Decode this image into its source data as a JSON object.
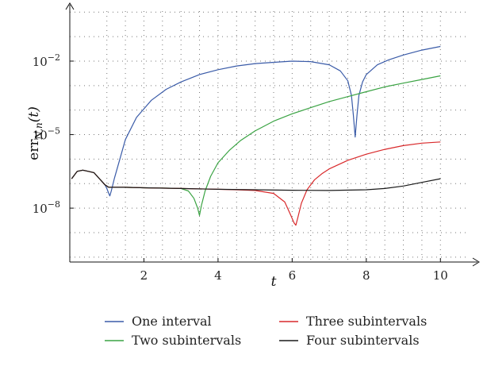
{
  "chart_data": {
    "type": "line",
    "xlabel": "t",
    "ylabel": "err",
    "ylabel_sub": "N,n",
    "ylabel_arg": "(t)",
    "xlim": [
      0,
      11
    ],
    "ylim_log10": [
      -10.2,
      0.3
    ],
    "y_scale": "log",
    "grid": "dotted",
    "legend_position": "bottom",
    "x_ticks": [
      {
        "value": 2,
        "label": "2"
      },
      {
        "value": 4,
        "label": "4"
      },
      {
        "value": 6,
        "label": "6"
      },
      {
        "value": 8,
        "label": "8"
      },
      {
        "value": 10,
        "label": "10"
      }
    ],
    "y_ticks": [
      {
        "value": -2,
        "base": "10",
        "exp": "−2"
      },
      {
        "value": -5,
        "base": "10",
        "exp": "−5"
      },
      {
        "value": -8,
        "base": "10",
        "exp": "−8"
      }
    ],
    "series": [
      {
        "name": "One interval",
        "color": "#3a5ba8",
        "x": [
          0.05,
          0.2,
          0.35,
          0.5,
          0.65,
          0.8,
          0.95,
          1.0,
          1.05,
          1.08,
          1.12,
          1.2,
          1.35,
          1.5,
          1.8,
          2.2,
          2.6,
          3.0,
          3.5,
          4.0,
          4.5,
          5.0,
          5.5,
          6.0,
          6.5,
          7.0,
          7.3,
          7.5,
          7.6,
          7.65,
          7.7,
          7.75,
          7.8,
          7.9,
          8.0,
          8.3,
          8.6,
          9.0,
          9.5,
          10.0
        ],
        "log10_y": [
          -6.8,
          -6.5,
          -6.45,
          -6.5,
          -6.55,
          -6.8,
          -7.05,
          -7.2,
          -7.4,
          -7.5,
          -7.3,
          -6.8,
          -6.0,
          -5.2,
          -4.3,
          -3.6,
          -3.15,
          -2.85,
          -2.55,
          -2.35,
          -2.2,
          -2.1,
          -2.05,
          -2.0,
          -2.02,
          -2.15,
          -2.4,
          -2.8,
          -3.4,
          -4.2,
          -5.1,
          -4.2,
          -3.4,
          -2.85,
          -2.55,
          -2.15,
          -1.95,
          -1.75,
          -1.55,
          -1.4
        ]
      },
      {
        "name": "Two subintervals",
        "color": "#3aa343",
        "x": [
          0.05,
          0.2,
          0.35,
          0.5,
          0.65,
          0.8,
          0.95,
          1.05,
          1.2,
          1.5,
          2.0,
          2.5,
          3.0,
          3.2,
          3.35,
          3.45,
          3.5,
          3.55,
          3.65,
          3.8,
          4.0,
          4.3,
          4.6,
          5.0,
          5.5,
          6.0,
          6.5,
          7.0,
          7.5,
          8.0,
          8.5,
          9.0,
          9.5,
          10.0
        ],
        "log10_y": [
          -6.8,
          -6.5,
          -6.45,
          -6.5,
          -6.55,
          -6.8,
          -7.05,
          -7.15,
          -7.15,
          -7.15,
          -7.17,
          -7.18,
          -7.2,
          -7.3,
          -7.6,
          -8.0,
          -8.3,
          -7.9,
          -7.3,
          -6.7,
          -6.15,
          -5.65,
          -5.25,
          -4.85,
          -4.45,
          -4.15,
          -3.9,
          -3.65,
          -3.45,
          -3.25,
          -3.05,
          -2.9,
          -2.75,
          -2.6
        ]
      },
      {
        "name": "Three subintervals",
        "color": "#d9292b",
        "x": [
          0.05,
          0.2,
          0.35,
          0.5,
          0.65,
          0.8,
          0.95,
          1.05,
          1.2,
          1.5,
          2.0,
          3.0,
          4.0,
          4.5,
          5.0,
          5.5,
          5.8,
          5.95,
          6.05,
          6.1,
          6.15,
          6.25,
          6.4,
          6.6,
          6.8,
          7.0,
          7.5,
          8.0,
          8.5,
          9.0,
          9.5,
          10.0
        ],
        "log10_y": [
          -6.8,
          -6.5,
          -6.45,
          -6.5,
          -6.55,
          -6.8,
          -7.05,
          -7.15,
          -7.15,
          -7.15,
          -7.17,
          -7.2,
          -7.23,
          -7.25,
          -7.28,
          -7.4,
          -7.75,
          -8.25,
          -8.6,
          -8.7,
          -8.4,
          -7.8,
          -7.25,
          -6.85,
          -6.6,
          -6.4,
          -6.05,
          -5.8,
          -5.6,
          -5.45,
          -5.35,
          -5.3
        ]
      },
      {
        "name": "Four subintervals",
        "color": "#1a1a1a",
        "x": [
          0.05,
          0.2,
          0.35,
          0.5,
          0.65,
          0.8,
          0.95,
          1.05,
          1.2,
          1.5,
          2.0,
          3.0,
          4.0,
          5.0,
          6.0,
          7.0,
          8.0,
          8.5,
          9.0,
          9.5,
          10.0
        ],
        "log10_y": [
          -6.8,
          -6.5,
          -6.45,
          -6.5,
          -6.55,
          -6.8,
          -7.05,
          -7.15,
          -7.15,
          -7.15,
          -7.17,
          -7.2,
          -7.23,
          -7.25,
          -7.27,
          -7.28,
          -7.25,
          -7.2,
          -7.1,
          -6.95,
          -6.8
        ]
      }
    ]
  }
}
